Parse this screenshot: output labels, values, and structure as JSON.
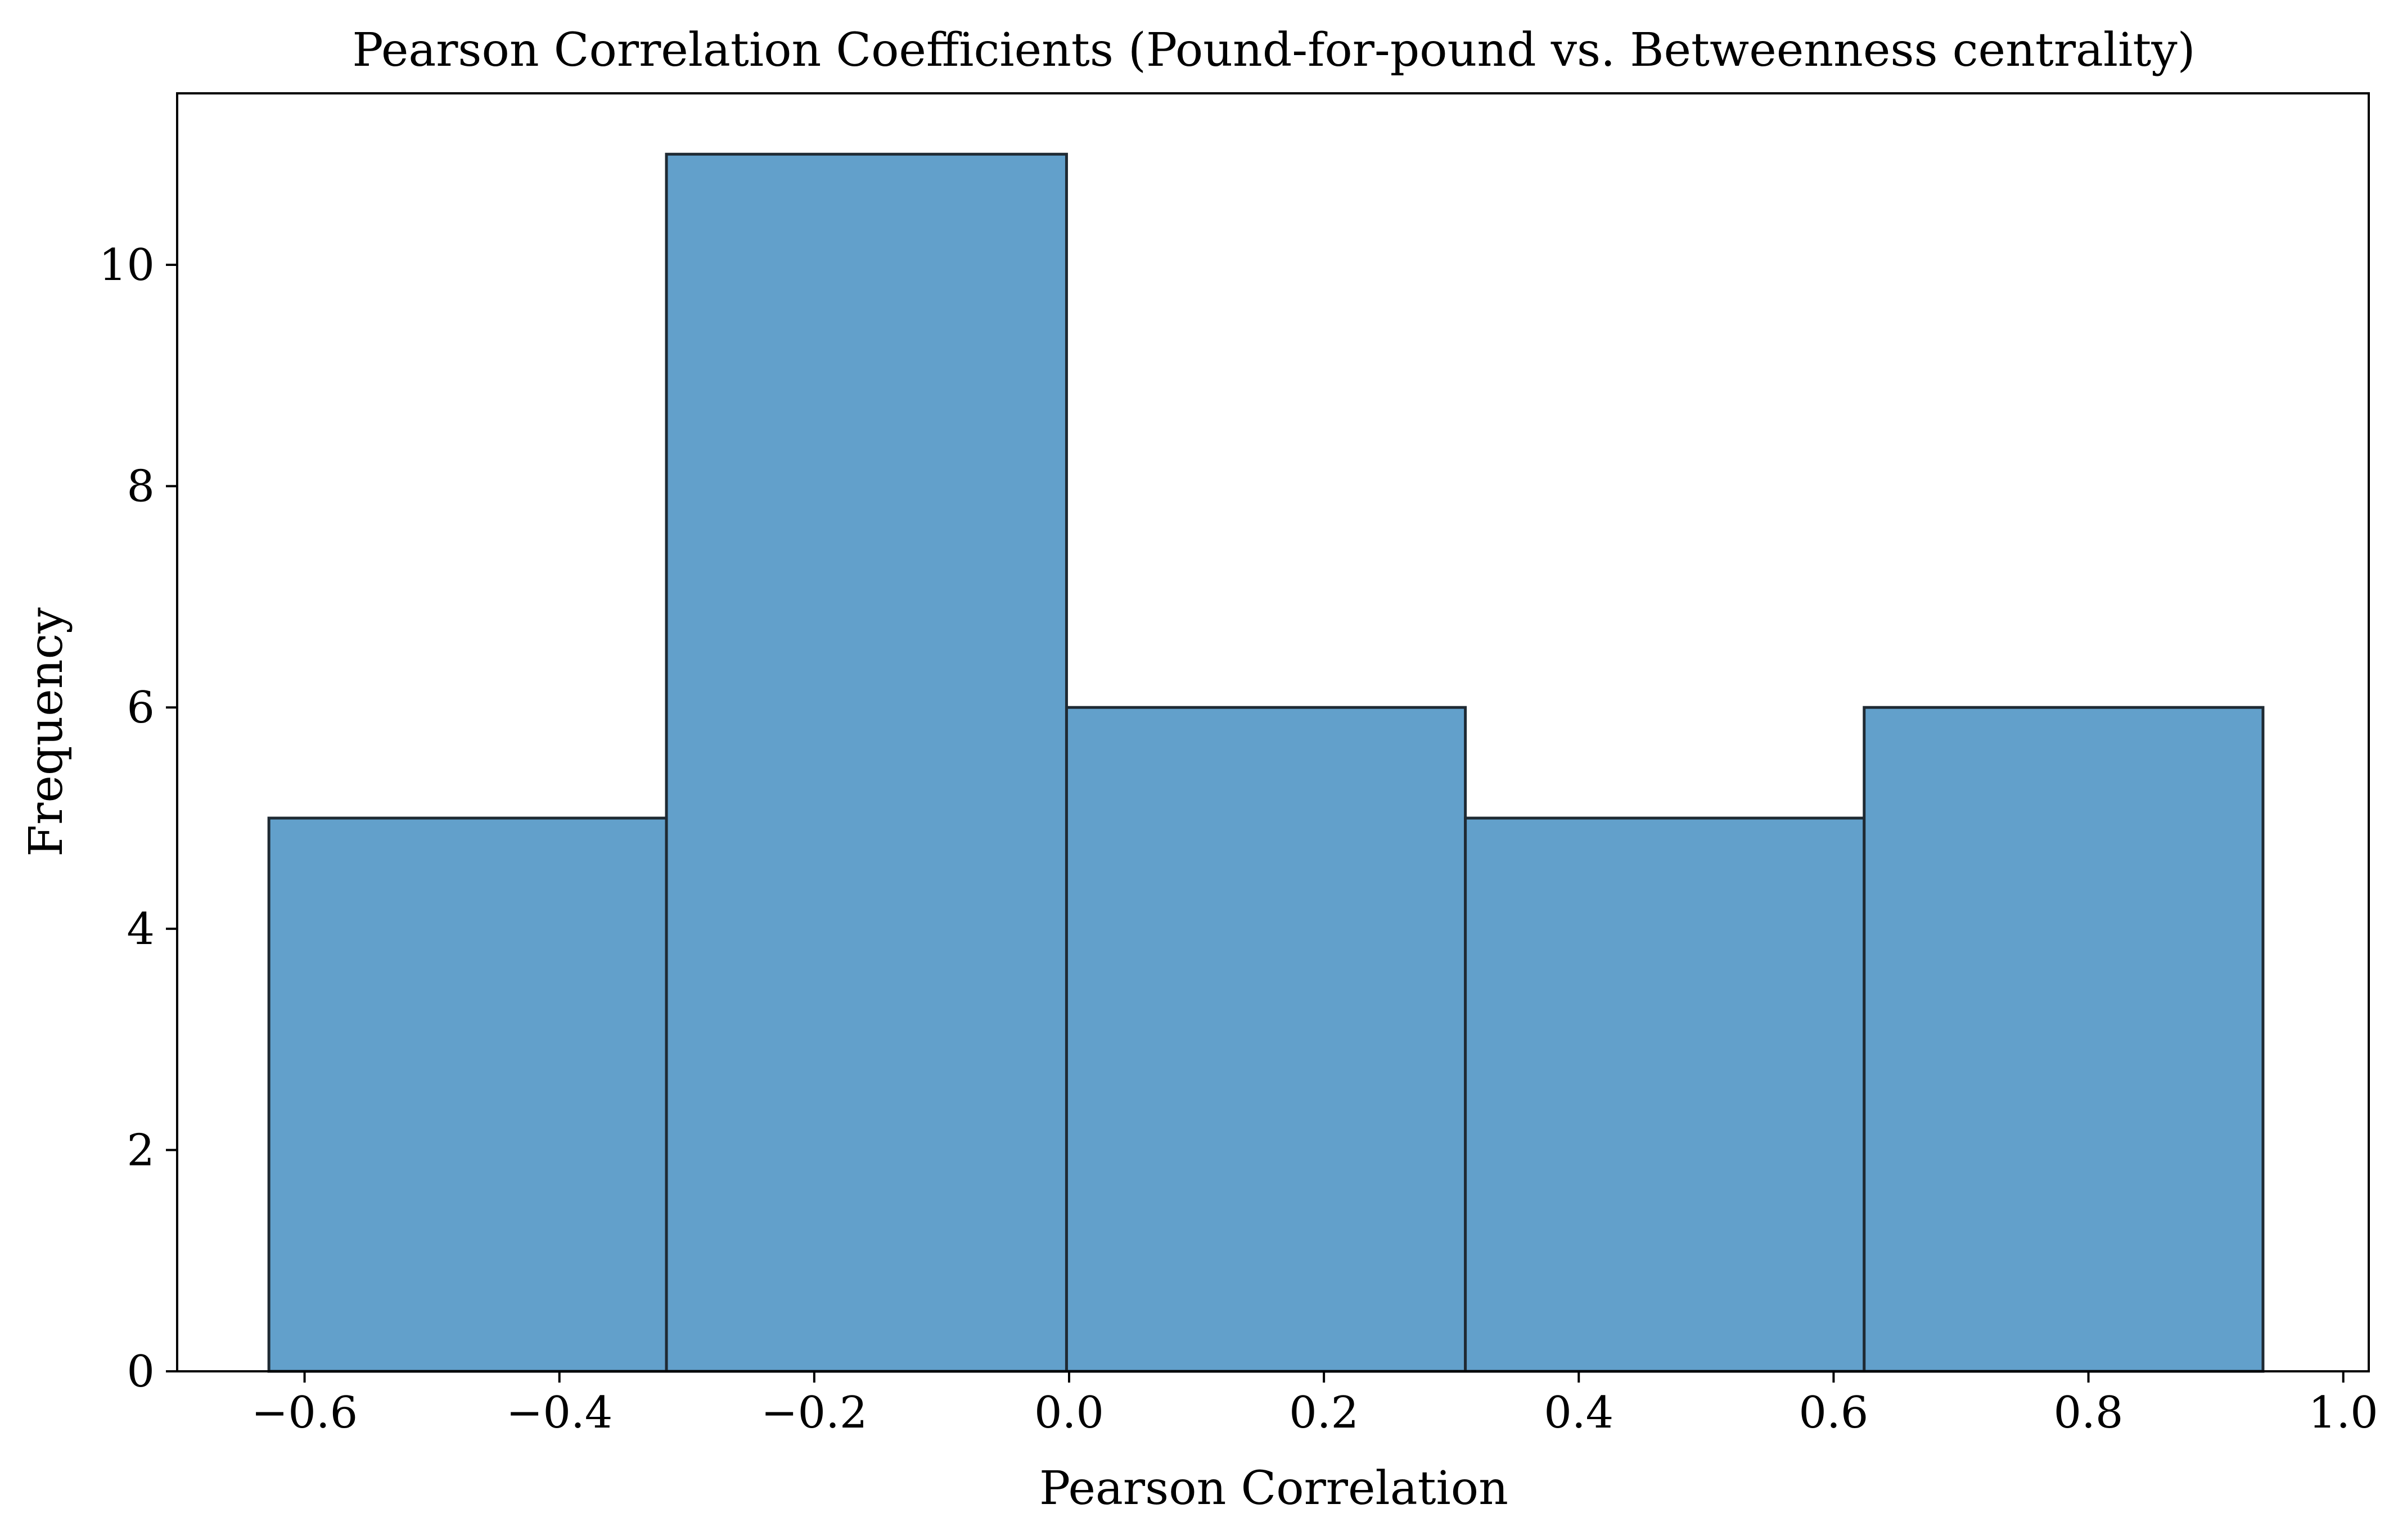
{
  "chart_data": {
    "type": "bar",
    "title": "Pearson Correlation Coefficients (Pound-for-pound vs. Betweenness centrality)",
    "xlabel": "Pearson Correlation",
    "ylabel": "Frequency",
    "xlim": [
      -0.7,
      1.02
    ],
    "ylim": [
      0,
      11.55
    ],
    "bin_edges": [
      -0.628,
      -0.316,
      -0.002,
      0.311,
      0.624,
      0.937
    ],
    "values": [
      5,
      11,
      6,
      5,
      6
    ],
    "x_ticks": [
      -0.6,
      -0.4,
      -0.2,
      0.0,
      0.2,
      0.4,
      0.6,
      0.8,
      1.0
    ],
    "x_tick_labels": [
      "−0.6",
      "−0.4",
      "−0.2",
      "0.0",
      "0.2",
      "0.4",
      "0.6",
      "0.8",
      "1.0"
    ],
    "y_ticks": [
      0,
      2,
      4,
      6,
      8,
      10
    ],
    "y_tick_labels": [
      "0",
      "2",
      "4",
      "6",
      "8",
      "10"
    ],
    "grid": false,
    "colors": {
      "bar_fill": "#62a0cb",
      "bar_edge": "#1f2a33",
      "axes": "#000000"
    }
  }
}
